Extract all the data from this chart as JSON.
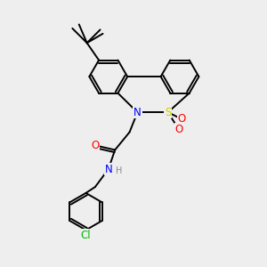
{
  "bg_color": "#eeeeee",
  "bond_color": "#000000",
  "bond_width": 1.4,
  "atom_colors": {
    "N": "#0000ff",
    "S": "#cccc00",
    "O": "#ff0000",
    "Cl": "#00bb00",
    "H": "#888888"
  },
  "font_size_atom": 8.5,
  "font_size_small": 7.0
}
